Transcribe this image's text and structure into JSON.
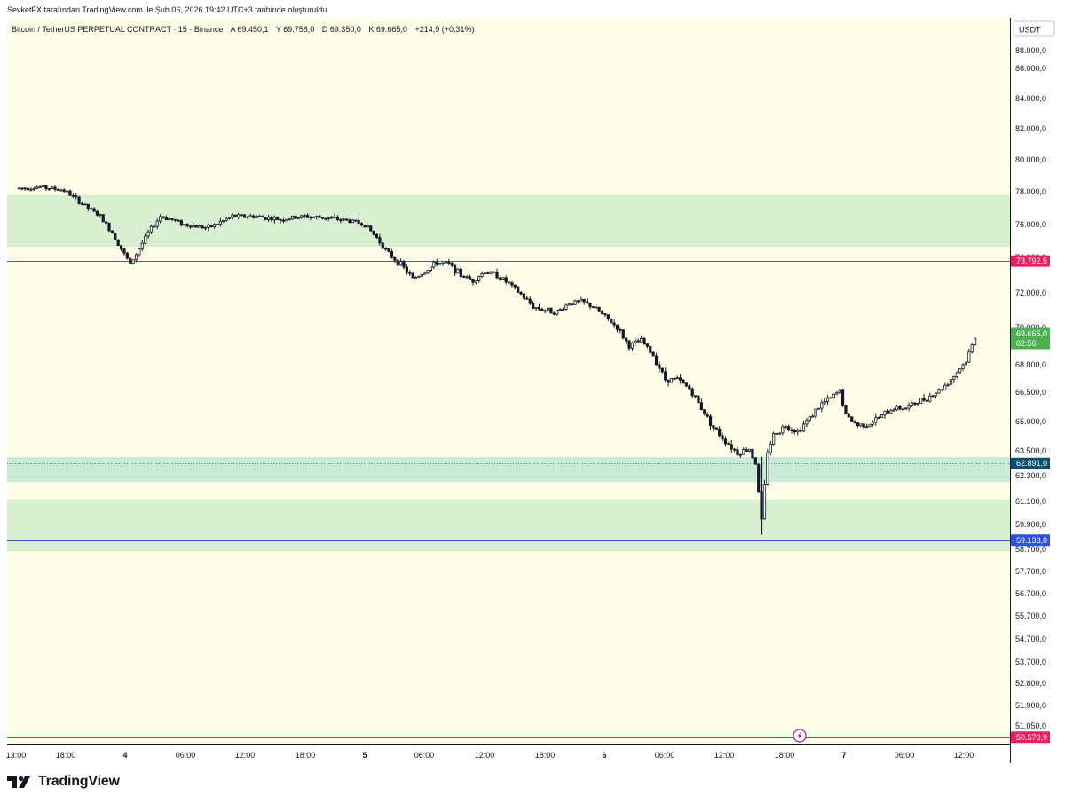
{
  "header": {
    "attribution": "SevketFX tarafından TradingView.com ile Şub 06, 2026 19:42 UTC+3 tarihinde oluşturuldu"
  },
  "legend": {
    "symbol": "Bitcoin / TetherUS PERPETUAL CONTRACT · 15 · Binance",
    "open_label": "A",
    "open": "69.450,1",
    "high_label": "Y",
    "high": "69.758,0",
    "low_label": "D",
    "low": "69.350,0",
    "close_label": "K",
    "close": "69.665,0",
    "change": "+214,9 (+0,31%)"
  },
  "price_scale": {
    "currency": "USDT",
    "ticks": [
      "88.000,0",
      "86.000,0",
      "84.000,0",
      "82.000,0",
      "80.000,0",
      "78.000,0",
      "76.000,0",
      "74.000,0",
      "72.000,0",
      "70.000,0",
      "68.000,0",
      "66.500,0",
      "65.000,0",
      "63.500,0",
      "62.300,0",
      "61.100,0",
      "59.900,0",
      "58.700,0",
      "57.700,0",
      "56.700,0",
      "55.700,0",
      "54.700,0",
      "53.700,0",
      "52.800,0",
      "51.900,0",
      "51.050,0"
    ]
  },
  "time_scale": {
    "labels": [
      "13:00",
      "18:00",
      "4",
      "06:00",
      "12:00",
      "18:00",
      "5",
      "06:00",
      "12:00",
      "18:00",
      "6",
      "06:00",
      "12:00",
      "18:00",
      "7",
      "06:00",
      "12:00"
    ]
  },
  "markers": {
    "current_price": "69.665,0",
    "countdown": "02:56",
    "level_red_1": "73.792,5",
    "level_teal": "62.891,0",
    "level_blue": "59.138,0",
    "level_red_2": "50.570,9"
  },
  "colors": {
    "background": "#fffde7",
    "zone_green": "#d9efd2",
    "zone_teal": "#c8ead6",
    "line_red": "#e91e63",
    "line_blue": "#3f51b5",
    "label_current": "#4caf50",
    "label_teal": "#0b4f6c",
    "label_blue": "#2f4fe0",
    "candle": "#131722"
  },
  "chart_data": {
    "type": "candlestick",
    "interval": "15",
    "x_unit": "hours since 3 Feb 13:00",
    "y_unit": "USDT",
    "ylim": [
      50300,
      88500
    ],
    "zones": [
      {
        "from": 74650,
        "to": 77800,
        "color": "green"
      },
      {
        "from": 62000,
        "to": 63200,
        "color": "teal"
      },
      {
        "from": 58600,
        "to": 61200,
        "color": "green"
      }
    ],
    "horizontal_levels": [
      {
        "value": 73792.5,
        "color": "red"
      },
      {
        "value": 62891.0,
        "color": "teal-dotted"
      },
      {
        "value": 59138.0,
        "color": "blue"
      },
      {
        "value": 50570.9,
        "color": "red"
      }
    ],
    "price_path": [
      [
        0,
        78200
      ],
      [
        2,
        78300
      ],
      [
        4,
        78100
      ],
      [
        6,
        77000
      ],
      [
        7,
        76500
      ],
      [
        8,
        75500
      ],
      [
        9,
        74200
      ],
      [
        9.5,
        73600
      ],
      [
        10,
        74200
      ],
      [
        11,
        75500
      ],
      [
        12,
        76500
      ],
      [
        13,
        76300
      ],
      [
        14,
        76000
      ],
      [
        16,
        75800
      ],
      [
        18,
        76500
      ],
      [
        20,
        76500
      ],
      [
        22,
        76300
      ],
      [
        24,
        76500
      ],
      [
        26,
        76400
      ],
      [
        28,
        76200
      ],
      [
        29,
        76000
      ],
      [
        30,
        75200
      ],
      [
        31,
        74200
      ],
      [
        32,
        73600
      ],
      [
        33,
        72800
      ],
      [
        34,
        73200
      ],
      [
        35,
        73700
      ],
      [
        36,
        73600
      ],
      [
        37,
        73000
      ],
      [
        38,
        72700
      ],
      [
        39,
        73200
      ],
      [
        40,
        73000
      ],
      [
        41,
        72500
      ],
      [
        42,
        71900
      ],
      [
        43,
        71200
      ],
      [
        44,
        71000
      ],
      [
        45,
        70900
      ],
      [
        46,
        71400
      ],
      [
        47,
        71500
      ],
      [
        48,
        71200
      ],
      [
        50,
        70000
      ],
      [
        51,
        69000
      ],
      [
        52,
        69300
      ],
      [
        53,
        68500
      ],
      [
        54,
        67200
      ],
      [
        55,
        67200
      ],
      [
        56,
        66700
      ],
      [
        57,
        65700
      ],
      [
        58,
        64700
      ],
      [
        59,
        64000
      ],
      [
        60,
        63400
      ],
      [
        61,
        63600
      ],
      [
        61.5,
        62900
      ],
      [
        62,
        60100
      ],
      [
        62.5,
        63500
      ],
      [
        63,
        64300
      ],
      [
        64,
        64800
      ],
      [
        65,
        64500
      ],
      [
        66,
        65200
      ],
      [
        67,
        65900
      ],
      [
        68,
        66300
      ],
      [
        68.5,
        66600
      ],
      [
        69,
        65300
      ],
      [
        70,
        64800
      ],
      [
        71,
        64900
      ],
      [
        72,
        65300
      ],
      [
        73,
        65700
      ],
      [
        74,
        65700
      ],
      [
        75,
        66000
      ],
      [
        76,
        66300
      ],
      [
        77,
        66700
      ],
      [
        78,
        67400
      ],
      [
        79,
        68200
      ],
      [
        79.9,
        69665
      ]
    ]
  }
}
